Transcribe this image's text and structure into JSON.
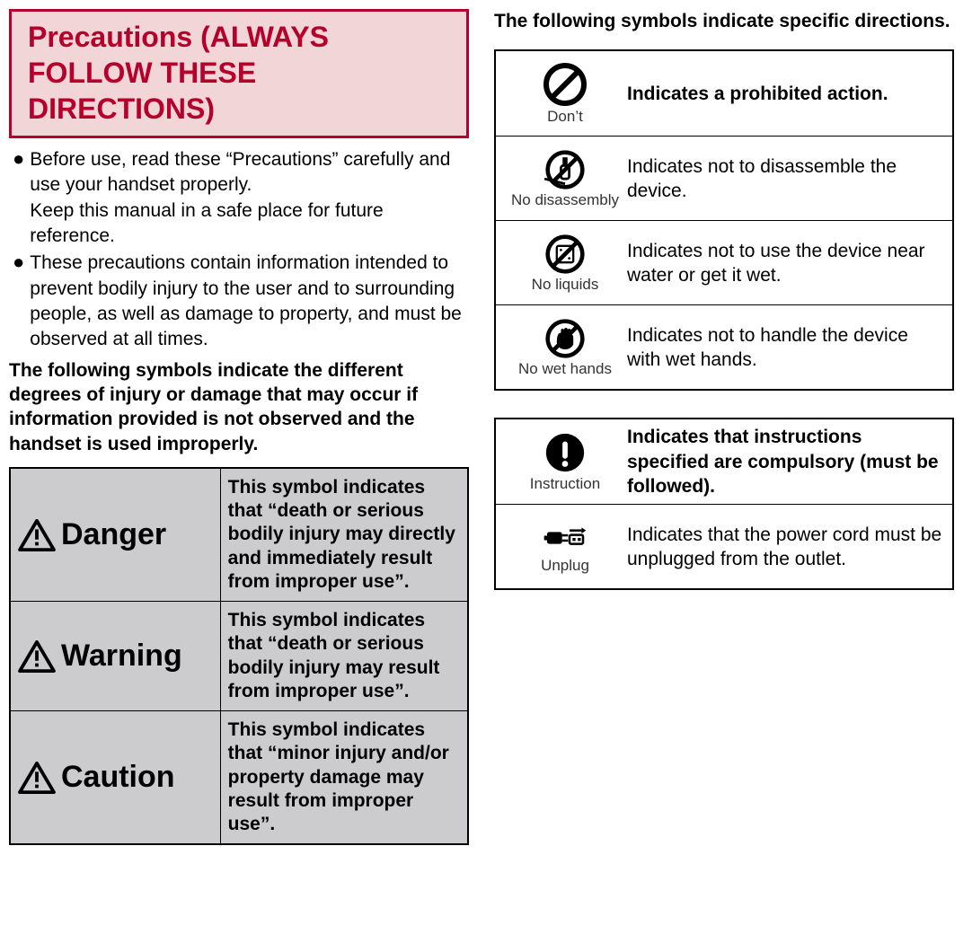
{
  "title": "Precautions (ALWAYS FOLLOW THESE DIRECTIONS)",
  "title_box": {
    "border_color": "#b5002b",
    "bg_color": "#f2d5d6",
    "text_color": "#b5002b",
    "font_size": 32
  },
  "bullets": [
    "Before use, read these “Precautions” carefully and use your handset properly.\nKeep this manual in a safe place for future reference.",
    "These precautions contain information intended to prevent bodily injury to the user and to surrounding people, as well as damage to property, and must be observed at all times."
  ],
  "severity_intro": "The following symbols indicate the different degrees of injury or damage that may occur if information provided is not observed and the handset is used improperly.",
  "severity_rows": [
    {
      "label": "Danger",
      "desc": "This symbol indicates that “death or serious bodily injury may directly and immediately result from improper use”."
    },
    {
      "label": "Warning",
      "desc": "This symbol indicates that “death or serious bodily injury may result from improper use”."
    },
    {
      "label": "Caution",
      "desc": "This symbol indicates that “minor injury and/or property damage may result from improper use”."
    }
  ],
  "severity_cell_bg": "#ccccce",
  "directions_heading": "The following symbols indicate specific directions.",
  "directions_groups": [
    {
      "rows": [
        {
          "icon": "dont",
          "icon_label": "Don’t",
          "text": "Indicates a prohibited action.",
          "bold": true
        },
        {
          "icon": "no-disassembly",
          "icon_label": "No disassembly",
          "text": "Indicates not to disassemble the device.",
          "bold": false
        },
        {
          "icon": "no-liquids",
          "icon_label": "No liquids",
          "text": "Indicates not to use the device near water or get it wet.",
          "bold": false
        },
        {
          "icon": "no-wet-hands",
          "icon_label": "No wet hands",
          "text": "Indicates not to handle the device with wet hands.",
          "bold": false
        }
      ]
    },
    {
      "rows": [
        {
          "icon": "instruction",
          "icon_label": "Instruction",
          "text": "Indicates that instructions specified are compulsory (must be followed).",
          "bold": true
        },
        {
          "icon": "unplug",
          "icon_label": "Unplug",
          "text": "Indicates that the power cord must be unplugged from the outlet.",
          "bold": false
        }
      ]
    }
  ],
  "body_font_size": 21,
  "icon_label_font_size": 17
}
